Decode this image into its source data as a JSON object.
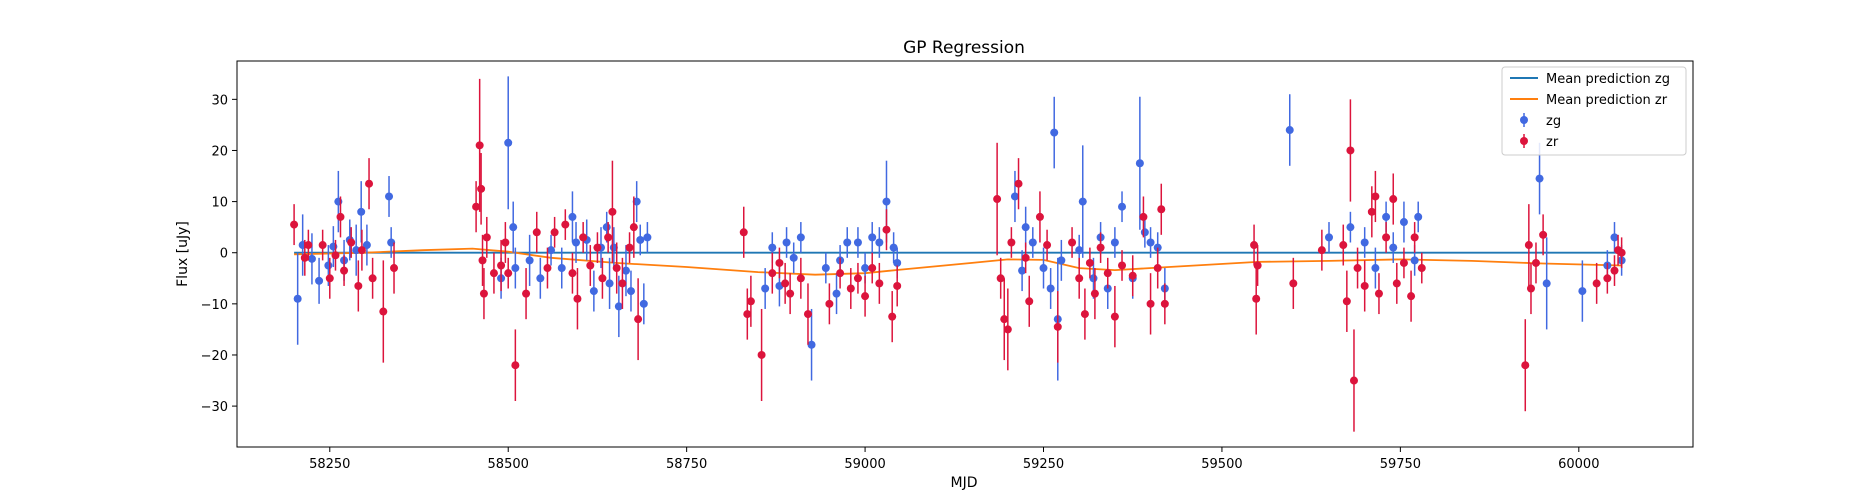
{
  "chart_data": {
    "type": "scatter",
    "title": "GP Regression",
    "xlabel": "MJD",
    "ylabel": "Flux [uJy]",
    "xlim": [
      58120,
      60160
    ],
    "ylim": [
      -38,
      37.5
    ],
    "xticks": [
      58250,
      58500,
      58750,
      59000,
      59250,
      59500,
      59750,
      60000
    ],
    "yticks": [
      -30,
      -20,
      -10,
      0,
      10,
      20,
      30
    ],
    "legend_position": "top-right",
    "legend": [
      "Mean prediction zg",
      "Mean prediction zr",
      "zg",
      "zr"
    ],
    "lines": [
      {
        "name": "Mean prediction zg",
        "color": "#1f77b4",
        "x": [
          58200,
          60060
        ],
        "y": [
          0,
          0
        ]
      },
      {
        "name": "Mean prediction zr",
        "color": "#ff7f0e",
        "x": [
          58200,
          58300,
          58380,
          58450,
          58500,
          58560,
          58650,
          58750,
          58850,
          58930,
          59000,
          59050,
          59150,
          59200,
          59250,
          59300,
          59350,
          59450,
          59550,
          59650,
          59750,
          59850,
          59950,
          60060
        ],
        "y": [
          -0.3,
          0.0,
          0.5,
          0.8,
          0.2,
          -1.0,
          -2.0,
          -2.8,
          -3.8,
          -4.3,
          -4.0,
          -3.3,
          -2.0,
          -1.3,
          -1.4,
          -3.0,
          -3.4,
          -2.6,
          -1.8,
          -1.6,
          -1.3,
          -1.6,
          -2.1,
          -2.5
        ]
      }
    ],
    "series": [
      {
        "name": "zg",
        "color": "#4169e1",
        "points": [
          [
            58205,
            -9,
            9
          ],
          [
            58212,
            1.5,
            6
          ],
          [
            58225,
            -1.2,
            5
          ],
          [
            58235,
            -5.5,
            4.5
          ],
          [
            58248,
            -2.5,
            4
          ],
          [
            58255,
            1.2,
            4
          ],
          [
            58262,
            10,
            6
          ],
          [
            58270,
            -1.5,
            4
          ],
          [
            58278,
            2.5,
            4
          ],
          [
            58287,
            0.5,
            5
          ],
          [
            58294,
            8,
            6
          ],
          [
            58302,
            1.5,
            4
          ],
          [
            58333,
            11,
            4
          ],
          [
            58336,
            2,
            3
          ],
          [
            58490,
            -5,
            4
          ],
          [
            58500,
            21.5,
            13
          ],
          [
            58507,
            5,
            5
          ],
          [
            58510,
            -3,
            4
          ],
          [
            58530,
            -1.5,
            5
          ],
          [
            58545,
            -5,
            4
          ],
          [
            58560,
            0.5,
            3
          ],
          [
            58575,
            -3,
            4
          ],
          [
            58590,
            7,
            5
          ],
          [
            58595,
            2,
            4
          ],
          [
            58610,
            2.5,
            4
          ],
          [
            58620,
            -7.5,
            4
          ],
          [
            58630,
            1,
            4
          ],
          [
            58638,
            5,
            3
          ],
          [
            58642,
            -6,
            5
          ],
          [
            58648,
            1,
            4
          ],
          [
            58655,
            -10.5,
            6
          ],
          [
            58665,
            -3.5,
            5
          ],
          [
            58672,
            -7.5,
            4
          ],
          [
            58680,
            10,
            4
          ],
          [
            58685,
            2.5,
            3
          ],
          [
            58690,
            -10,
            4
          ],
          [
            58695,
            3,
            3
          ],
          [
            58860,
            -7,
            4
          ],
          [
            58870,
            1,
            3
          ],
          [
            58880,
            -6.5,
            4
          ],
          [
            58890,
            2,
            3
          ],
          [
            58900,
            -1,
            3
          ],
          [
            58910,
            3,
            3
          ],
          [
            58925,
            -18,
            7
          ],
          [
            58945,
            -3,
            3
          ],
          [
            58960,
            -8,
            4
          ],
          [
            58965,
            -1.5,
            3
          ],
          [
            58975,
            2,
            3
          ],
          [
            58990,
            2,
            3
          ],
          [
            59000,
            -3,
            3
          ],
          [
            59010,
            3,
            3
          ],
          [
            59020,
            2,
            3
          ],
          [
            59030,
            10,
            8
          ],
          [
            59040,
            1,
            3
          ],
          [
            59045,
            -2,
            3
          ],
          [
            59210,
            11,
            5
          ],
          [
            59220,
            -3.5,
            4
          ],
          [
            59225,
            5,
            4
          ],
          [
            59235,
            2,
            3
          ],
          [
            59250,
            -3,
            4
          ],
          [
            59260,
            -7,
            4
          ],
          [
            59265,
            23.5,
            7
          ],
          [
            59270,
            -13,
            12
          ],
          [
            59275,
            -1.5,
            4
          ],
          [
            59300,
            0.5,
            3
          ],
          [
            59305,
            10,
            11
          ],
          [
            59320,
            -5,
            4
          ],
          [
            59330,
            3,
            3
          ],
          [
            59340,
            -7,
            4
          ],
          [
            59350,
            2,
            3
          ],
          [
            59360,
            9,
            3
          ],
          [
            59375,
            -5,
            4
          ],
          [
            59385,
            17.5,
            13
          ],
          [
            59392,
            4,
            3
          ],
          [
            59400,
            2,
            3
          ],
          [
            59410,
            1,
            3
          ],
          [
            59420,
            -7,
            4
          ],
          [
            59595,
            24,
            7
          ],
          [
            59650,
            3,
            3
          ],
          [
            59680,
            5,
            3
          ],
          [
            59700,
            2,
            3
          ],
          [
            59715,
            -3,
            4
          ],
          [
            59730,
            7,
            3
          ],
          [
            59740,
            1,
            3
          ],
          [
            59755,
            6,
            4
          ],
          [
            59770,
            -1.5,
            3
          ],
          [
            59775,
            7,
            3
          ],
          [
            59945,
            14.5,
            7
          ],
          [
            59955,
            -6,
            9
          ],
          [
            60005,
            -7.5,
            6
          ],
          [
            60040,
            -2.5,
            3
          ],
          [
            60050,
            3,
            3
          ],
          [
            60060,
            -1.5,
            3
          ]
        ]
      },
      {
        "name": "zr",
        "color": "#dc143c",
        "points": [
          [
            58200,
            5.5,
            4
          ],
          [
            58215,
            -1,
            3.5
          ],
          [
            58220,
            1.5,
            3
          ],
          [
            58240,
            1.5,
            3
          ],
          [
            58250,
            -5,
            4
          ],
          [
            58258,
            -0.5,
            3
          ],
          [
            58265,
            7,
            4
          ],
          [
            58270,
            -3.5,
            3
          ],
          [
            58280,
            2,
            3
          ],
          [
            58290,
            -6.5,
            5
          ],
          [
            58295,
            0.5,
            4
          ],
          [
            58305,
            13.5,
            5
          ],
          [
            58310,
            -5,
            4
          ],
          [
            58325,
            -11.5,
            10
          ],
          [
            58340,
            -3,
            5
          ],
          [
            58455,
            9,
            5
          ],
          [
            58460,
            21,
            13
          ],
          [
            58462,
            12.5,
            7
          ],
          [
            58464,
            -1.5,
            5
          ],
          [
            58466,
            -8,
            5
          ],
          [
            58470,
            3,
            4
          ],
          [
            58480,
            -4,
            4
          ],
          [
            58490,
            -2.5,
            5
          ],
          [
            58496,
            2,
            4
          ],
          [
            58500,
            -4,
            3
          ],
          [
            58510,
            -22,
            7
          ],
          [
            58525,
            -8,
            5
          ],
          [
            58540,
            4,
            4
          ],
          [
            58555,
            -3,
            4
          ],
          [
            58565,
            4,
            3
          ],
          [
            58580,
            5.5,
            3
          ],
          [
            58590,
            -4,
            4
          ],
          [
            58597,
            -9,
            6
          ],
          [
            58605,
            3,
            3
          ],
          [
            58615,
            -2.5,
            4
          ],
          [
            58625,
            1,
            3
          ],
          [
            58632,
            -5,
            4
          ],
          [
            58640,
            3,
            3
          ],
          [
            58646,
            8,
            10
          ],
          [
            58652,
            -3,
            5
          ],
          [
            58660,
            -6,
            5
          ],
          [
            58670,
            1,
            3
          ],
          [
            58676,
            5,
            6
          ],
          [
            58682,
            -13,
            8
          ],
          [
            58830,
            4,
            5
          ],
          [
            58835,
            -12,
            5
          ],
          [
            58840,
            -9.5,
            5
          ],
          [
            58855,
            -20,
            9
          ],
          [
            58870,
            -4,
            4
          ],
          [
            58880,
            -2,
            3
          ],
          [
            58888,
            -6,
            4
          ],
          [
            58895,
            -8,
            4
          ],
          [
            58910,
            -5,
            4
          ],
          [
            58920,
            -12,
            6
          ],
          [
            58950,
            -10,
            4
          ],
          [
            58965,
            -4,
            3
          ],
          [
            58980,
            -7,
            4
          ],
          [
            58990,
            -5,
            3
          ],
          [
            59000,
            -8.5,
            4
          ],
          [
            59010,
            -3,
            3
          ],
          [
            59020,
            -6,
            4
          ],
          [
            59030,
            4.5,
            4
          ],
          [
            59038,
            -12.5,
            5
          ],
          [
            59045,
            -6.5,
            4
          ],
          [
            59185,
            10.5,
            11
          ],
          [
            59190,
            -5,
            4
          ],
          [
            59195,
            -13,
            8
          ],
          [
            59200,
            -15,
            8
          ],
          [
            59205,
            2,
            3
          ],
          [
            59215,
            13.5,
            5
          ],
          [
            59225,
            -1,
            3
          ],
          [
            59230,
            -9.5,
            5
          ],
          [
            59245,
            7,
            5
          ],
          [
            59255,
            1.5,
            3
          ],
          [
            59270,
            -14.5,
            7
          ],
          [
            59290,
            2,
            3
          ],
          [
            59300,
            -5,
            4
          ],
          [
            59308,
            -12,
            5
          ],
          [
            59315,
            -2,
            3
          ],
          [
            59322,
            -8,
            5
          ],
          [
            59330,
            1,
            3
          ],
          [
            59340,
            -4,
            3
          ],
          [
            59350,
            -12.5,
            6
          ],
          [
            59360,
            -2.5,
            3
          ],
          [
            59375,
            -4.5,
            4
          ],
          [
            59390,
            7,
            4
          ],
          [
            59400,
            -10,
            6
          ],
          [
            59410,
            -3,
            4
          ],
          [
            59415,
            8.5,
            5
          ],
          [
            59420,
            -10,
            4
          ],
          [
            59545,
            1.5,
            4
          ],
          [
            59548,
            -9,
            7
          ],
          [
            59550,
            -2.5,
            4
          ],
          [
            59600,
            -6,
            5
          ],
          [
            59640,
            0.5,
            4
          ],
          [
            59670,
            1.5,
            4
          ],
          [
            59675,
            -9.5,
            6
          ],
          [
            59680,
            20,
            10
          ],
          [
            59685,
            -25,
            10
          ],
          [
            59690,
            -3,
            4
          ],
          [
            59700,
            -6.5,
            5
          ],
          [
            59710,
            8,
            5
          ],
          [
            59715,
            11,
            5
          ],
          [
            59720,
            -8,
            4
          ],
          [
            59730,
            3,
            3
          ],
          [
            59740,
            10.5,
            5
          ],
          [
            59745,
            -6,
            4
          ],
          [
            59755,
            -2,
            3
          ],
          [
            59765,
            -8.5,
            5
          ],
          [
            59770,
            3,
            3
          ],
          [
            59780,
            -3,
            3
          ],
          [
            59925,
            -22,
            9
          ],
          [
            59930,
            1.5,
            8
          ],
          [
            59933,
            -7,
            5
          ],
          [
            59940,
            -2,
            4
          ],
          [
            59950,
            3.5,
            4
          ],
          [
            60025,
            -6,
            4
          ],
          [
            60040,
            -5,
            3
          ],
          [
            60050,
            -3.5,
            3
          ],
          [
            60055,
            0.5,
            3
          ],
          [
            60060,
            0,
            3
          ]
        ]
      }
    ]
  }
}
